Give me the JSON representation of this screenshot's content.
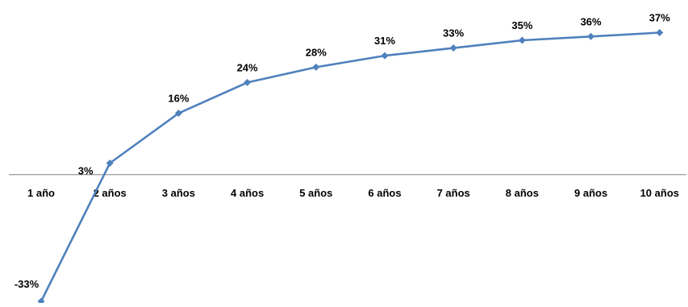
{
  "chart_data": {
    "type": "line",
    "categories": [
      "1 año",
      "2 años",
      "3 años",
      "4 años",
      "5 años",
      "6 años",
      "7 años",
      "8 años",
      "9 años",
      "10 años"
    ],
    "series": [
      {
        "values": [
          -33,
          3,
          16,
          24,
          28,
          31,
          33,
          35,
          36,
          37
        ],
        "data_labels": [
          "-33%",
          "3%",
          "16%",
          "24%",
          "28%",
          "31%",
          "33%",
          "35%",
          "36%",
          "37%"
        ],
        "color": "#4f81bd",
        "marker": "diamond"
      }
    ],
    "title": "",
    "xlabel": "",
    "ylabel": "",
    "ylim": [
      -33,
      37
    ],
    "grid": false,
    "legend": "none",
    "axis_color": "#808080"
  }
}
